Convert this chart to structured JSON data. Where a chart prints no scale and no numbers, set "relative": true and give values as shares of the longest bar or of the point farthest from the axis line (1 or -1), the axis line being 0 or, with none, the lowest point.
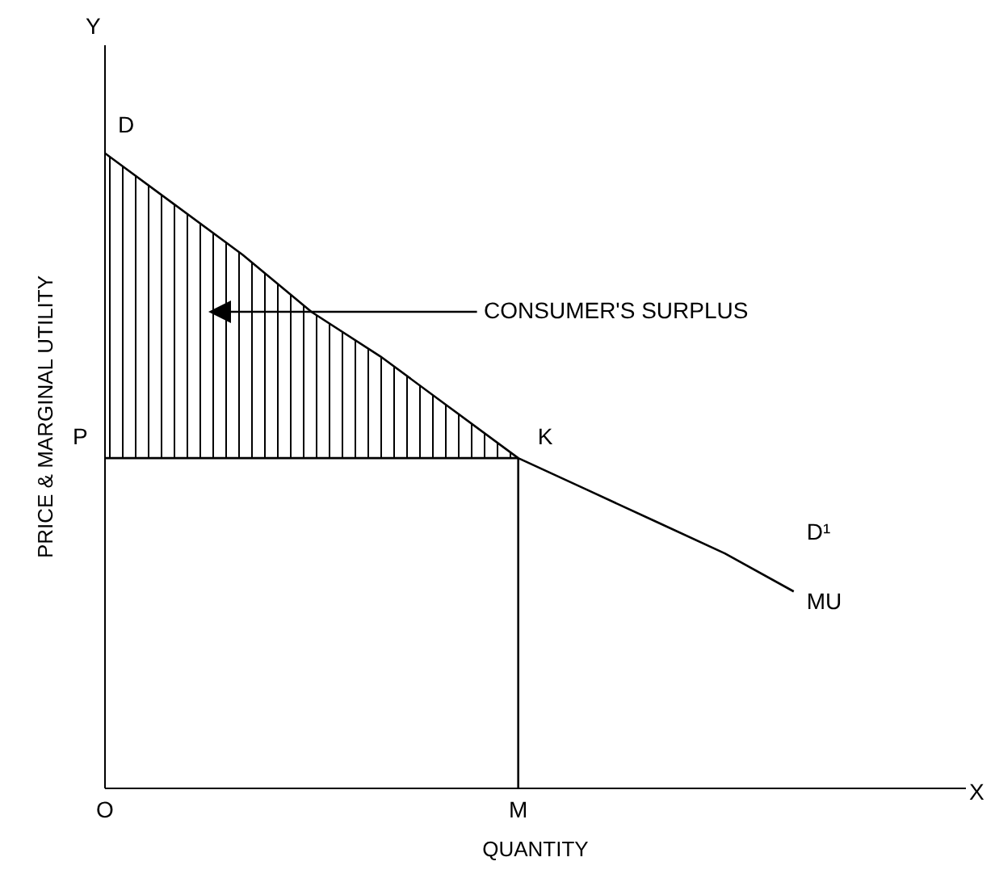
{
  "chart_data": {
    "type": "line",
    "relative": true,
    "xlabel": "QUANTITY",
    "ylabel": "PRICE & MARGINAL UTILITY",
    "marker": "none",
    "line_style": "solid",
    "categories": [
      "O",
      null,
      null,
      null,
      null,
      null,
      "M",
      null,
      null,
      null,
      null,
      null,
      null
    ],
    "series": [
      {
        "color": "#000000",
        "values": [
          1,
          0.92,
          0.84,
          0.75,
          0.68,
          0.6,
          0.52,
          0.47,
          0.42,
          0.37,
          0.31,
          null,
          null
        ],
        "lower": [
          0.52,
          0.52,
          0.52,
          0.52,
          0.52,
          0.52,
          0.52,
          null,
          null,
          null,
          null,
          null,
          null
        ],
        "upper": [
          1,
          0.92,
          0.84,
          0.75,
          0.68,
          0.6,
          0.52,
          null,
          null,
          null,
          null,
          null,
          null
        ]
      },
      {
        "color": "#000000",
        "values": [
          0.52,
          0.52,
          0.52,
          0.52,
          0.52,
          0.52,
          0.52,
          null,
          null,
          null,
          null,
          null,
          null
        ]
      },
      {
        "color": "#000000",
        "x": [
          "M",
          "M"
        ],
        "values": [
          0,
          0.52
        ]
      }
    ],
    "annotations": [
      {
        "text": "D",
        "x": "O",
        "y": 1
      },
      {
        "text": "K",
        "x": "M",
        "y": 0.52
      },
      "P",
      "CONSUMER'S SURPLUS",
      "D¹",
      "MU",
      "X",
      "Y"
    ]
  }
}
